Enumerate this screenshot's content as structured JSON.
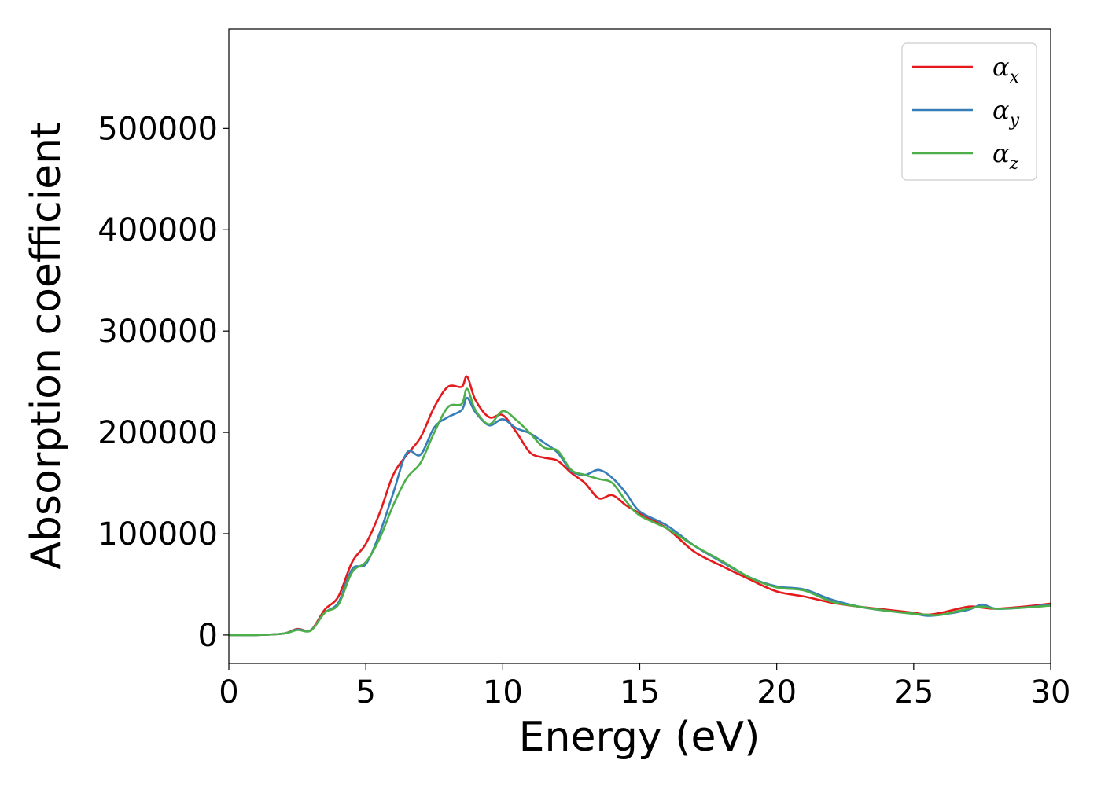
{
  "chart_data": {
    "type": "line",
    "title": "",
    "xlabel": "Energy (eV)",
    "ylabel": "Absorption coefficient",
    "xlim": [
      0,
      30
    ],
    "ylim": [
      -28000,
      598000
    ],
    "x_ticks": [
      0,
      5,
      10,
      15,
      20,
      25,
      30
    ],
    "y_ticks": [
      0,
      100000,
      200000,
      300000,
      400000,
      500000
    ],
    "grid": false,
    "legend_position": "top-right",
    "x": [
      0,
      1,
      2,
      2.5,
      3,
      3.5,
      4,
      4.5,
      5,
      5.5,
      6,
      6.5,
      7,
      7.5,
      8,
      8.5,
      8.7,
      9,
      9.5,
      10,
      10.5,
      11,
      11.5,
      12,
      12.5,
      13,
      13.5,
      14,
      14.5,
      15,
      16,
      17,
      18,
      19,
      20,
      21,
      22,
      23,
      24,
      25,
      25.5,
      26,
      27,
      27.5,
      28,
      29,
      30
    ],
    "series": [
      {
        "name_base": "α",
        "name_sub": "x",
        "color": "#e41a1c",
        "values": [
          0,
          0,
          1500,
          6000,
          5000,
          25000,
          38000,
          72000,
          90000,
          120000,
          158000,
          178000,
          195000,
          225000,
          245000,
          245000,
          255000,
          232000,
          215000,
          217000,
          200000,
          180000,
          175000,
          172000,
          160000,
          150000,
          135000,
          138000,
          128000,
          120000,
          105000,
          82000,
          68000,
          55000,
          43000,
          38000,
          32000,
          28000,
          25000,
          22000,
          20000,
          22000,
          28000,
          27000,
          26000,
          28000,
          31000
        ]
      },
      {
        "name_base": "α",
        "name_sub": "y",
        "color": "#377eb8",
        "values": [
          0,
          0,
          1500,
          5500,
          5000,
          22000,
          32000,
          65000,
          70000,
          100000,
          140000,
          180000,
          178000,
          205000,
          215000,
          222000,
          234000,
          220000,
          207000,
          213000,
          204000,
          199000,
          190000,
          180000,
          162000,
          158000,
          163000,
          155000,
          140000,
          122000,
          108000,
          88000,
          72000,
          57000,
          48000,
          45000,
          35000,
          28000,
          24000,
          21000,
          19000,
          20000,
          25000,
          30000,
          26000,
          27000,
          30000
        ]
      },
      {
        "name_base": "α",
        "name_sub": "z",
        "color": "#4daf4a",
        "values": [
          0,
          0,
          1500,
          5000,
          4500,
          22000,
          30000,
          62000,
          72000,
          95000,
          128000,
          155000,
          170000,
          200000,
          225000,
          228000,
          243000,
          222000,
          208000,
          221000,
          212000,
          199000,
          185000,
          182000,
          163000,
          158000,
          154000,
          150000,
          132000,
          118000,
          105000,
          88000,
          73000,
          57000,
          47000,
          44000,
          33000,
          28000,
          24000,
          21000,
          20000,
          20000,
          26000,
          28000,
          26000,
          27000,
          29000
        ]
      }
    ]
  }
}
